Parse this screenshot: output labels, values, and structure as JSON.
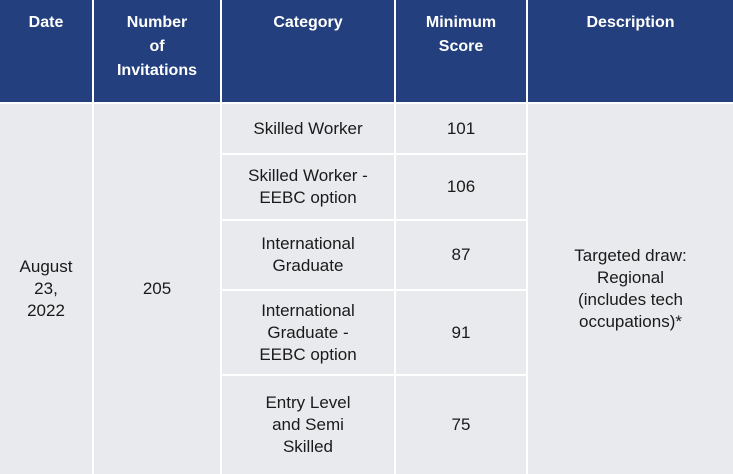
{
  "table": {
    "headers": {
      "date": "Date",
      "invitations": "Number\nof\nInvitations",
      "category": "Category",
      "min_score": "Minimum\nScore",
      "description": "Description"
    },
    "date": "August\n23,\n2022",
    "invitations": "205",
    "description": "Targeted draw:\nRegional\n(includes tech\noccupations)*",
    "rows": [
      {
        "category": "Skilled Worker",
        "min_score": "101"
      },
      {
        "category": "Skilled Worker -\nEEBC option",
        "min_score": "106"
      },
      {
        "category": "International\nGraduate",
        "min_score": "87"
      },
      {
        "category": "International\nGraduate -\nEEBC option",
        "min_score": "91"
      },
      {
        "category": "Entry Level\nand Semi\nSkilled",
        "min_score": "75"
      }
    ]
  },
  "colors": {
    "header_bg": "#243f7e",
    "header_text": "#ffffff",
    "body_bg": "#e9eaee",
    "border": "#ffffff"
  }
}
